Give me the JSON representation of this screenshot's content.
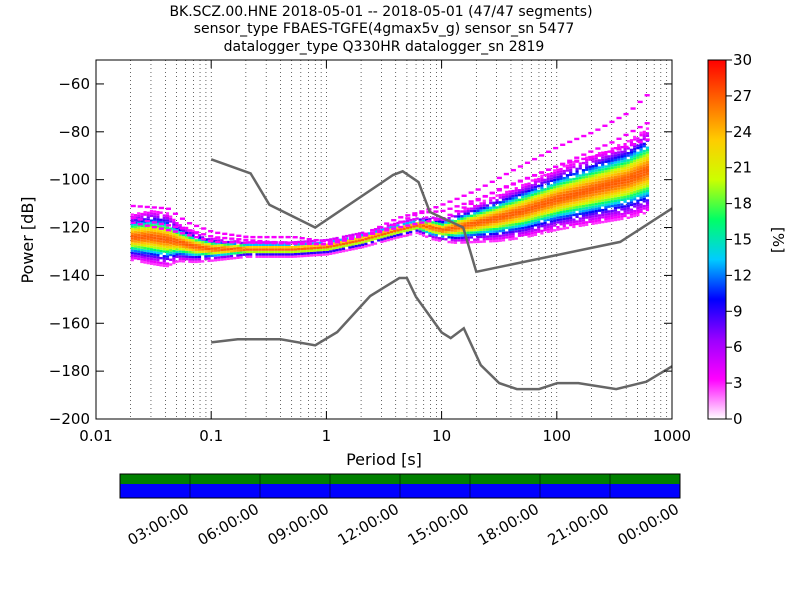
{
  "chart_data": {
    "type": "heatmap",
    "title_lines": [
      "BK.SCZ.00.HNE   2018-05-01 -- 2018-05-01  (47/47 segments)",
      "sensor_type FBAES-TGFE(4gmax5v_g) sensor_sn 5477",
      "datalogger_type Q330HR datalogger_sn 2819"
    ],
    "xlabel": "Period [s]",
    "ylabel": "Power [dB]",
    "x_scale": "log",
    "xlim": [
      0.01,
      1000
    ],
    "ylim": [
      -200,
      -50
    ],
    "x_ticks": [
      0.01,
      0.1,
      1,
      10,
      100,
      1000
    ],
    "x_tick_labels": [
      "0.01",
      "0.1",
      "1",
      "10",
      "100",
      "1000"
    ],
    "y_ticks": [
      -200,
      -180,
      -160,
      -140,
      -120,
      -100,
      -80,
      -60
    ],
    "y_tick_labels": [
      "−200",
      "−180",
      "−160",
      "−140",
      "−120",
      "−100",
      "−80",
      "−60"
    ],
    "grid": "dotted vertical at log minor ticks",
    "colorbar": {
      "label": "[%]",
      "range": [
        0,
        30
      ],
      "ticks": [
        0,
        3,
        6,
        9,
        12,
        15,
        18,
        21,
        24,
        27,
        30
      ],
      "colormap": "pqlx",
      "colors": [
        "#ffffff",
        "#ff00ff",
        "#9900ff",
        "#0000ff",
        "#00ccff",
        "#00ff66",
        "#ccff00",
        "#ffcc00",
        "#ff6600",
        "#ff0000"
      ]
    },
    "noise_models": [
      {
        "name": "NHNM",
        "color": "#666666",
        "points": [
          [
            0.1,
            -91.5
          ],
          [
            0.22,
            -97.4
          ],
          [
            0.32,
            -110.5
          ],
          [
            0.8,
            -120
          ],
          [
            3.8,
            -98
          ],
          [
            4.6,
            -96.5
          ],
          [
            6.3,
            -101
          ],
          [
            7.9,
            -113.5
          ],
          [
            15.4,
            -120
          ],
          [
            20,
            -138.5
          ],
          [
            354.8,
            -126
          ],
          [
            1000,
            -112
          ]
        ]
      },
      {
        "name": "NLNM",
        "color": "#666666",
        "points": [
          [
            0.1,
            -168
          ],
          [
            0.17,
            -166.7
          ],
          [
            0.4,
            -166.7
          ],
          [
            0.8,
            -169.2
          ],
          [
            1.24,
            -163.7
          ],
          [
            2.4,
            -148.6
          ],
          [
            4.3,
            -141.1
          ],
          [
            5,
            -141.1
          ],
          [
            6,
            -149
          ],
          [
            10,
            -163.8
          ],
          [
            12,
            -166.2
          ],
          [
            15.6,
            -162.1
          ],
          [
            21.9,
            -177.5
          ],
          [
            31.6,
            -185
          ],
          [
            45,
            -187.5
          ],
          [
            70,
            -187.5
          ],
          [
            101,
            -185
          ],
          [
            154,
            -185
          ],
          [
            328,
            -187.5
          ],
          [
            600,
            -184.4
          ],
          [
            1000,
            -178
          ]
        ]
      }
    ],
    "psd_bands": [
      {
        "periods": [
          0.02,
          0.03,
          0.04,
          0.05,
          0.07,
          0.1,
          0.2,
          0.5,
          1,
          2,
          4,
          6,
          8,
          10,
          13,
          20,
          30,
          50,
          100,
          200,
          400,
          600
        ],
        "center": [
          -124,
          -124,
          -125,
          -126,
          -128,
          -129,
          -129,
          -129,
          -128,
          -125,
          -121,
          -119,
          -120,
          -121,
          -120,
          -118,
          -116,
          -113,
          -108,
          -104,
          -100,
          -96
        ],
        "spread": [
          6,
          7,
          7,
          5,
          4,
          3,
          2,
          2,
          2,
          2,
          2,
          2,
          3,
          3,
          4,
          5,
          6,
          7,
          8,
          9,
          10,
          11
        ]
      }
    ],
    "outlier_traces": [
      [
        [
          0.02,
          -111
        ],
        [
          0.04,
          -112
        ],
        [
          0.06,
          -118
        ],
        [
          0.1,
          -122
        ],
        [
          0.2,
          -124
        ],
        [
          0.5,
          -124
        ],
        [
          1,
          -126
        ],
        [
          2,
          -123
        ],
        [
          4,
          -116
        ],
        [
          8,
          -112
        ],
        [
          13,
          -108
        ],
        [
          20,
          -104
        ],
        [
          40,
          -96
        ],
        [
          100,
          -86
        ],
        [
          200,
          -80
        ],
        [
          400,
          -72
        ],
        [
          600,
          -64
        ]
      ],
      [
        [
          0.02,
          -116
        ],
        [
          0.05,
          -120
        ],
        [
          0.1,
          -124
        ],
        [
          0.3,
          -126
        ],
        [
          1,
          -127
        ],
        [
          3,
          -121
        ],
        [
          6,
          -114
        ],
        [
          10,
          -113
        ],
        [
          20,
          -108
        ],
        [
          50,
          -100
        ],
        [
          100,
          -94
        ],
        [
          300,
          -88
        ],
        [
          600,
          -83
        ]
      ],
      [
        [
          0.02,
          -118
        ],
        [
          0.05,
          -122
        ],
        [
          0.1,
          -126
        ],
        [
          1,
          -127
        ],
        [
          4,
          -120
        ],
        [
          10,
          -116
        ],
        [
          30,
          -104
        ],
        [
          100,
          -94
        ],
        [
          300,
          -84
        ],
        [
          600,
          -76
        ]
      ]
    ]
  },
  "time_bar": {
    "tick_labels": [
      "03:00:00",
      "06:00:00",
      "09:00:00",
      "12:00:00",
      "15:00:00",
      "18:00:00",
      "21:00:00",
      "00:00:00"
    ],
    "top_band_color": "#008000",
    "bottom_band_color": "#0000ff"
  }
}
